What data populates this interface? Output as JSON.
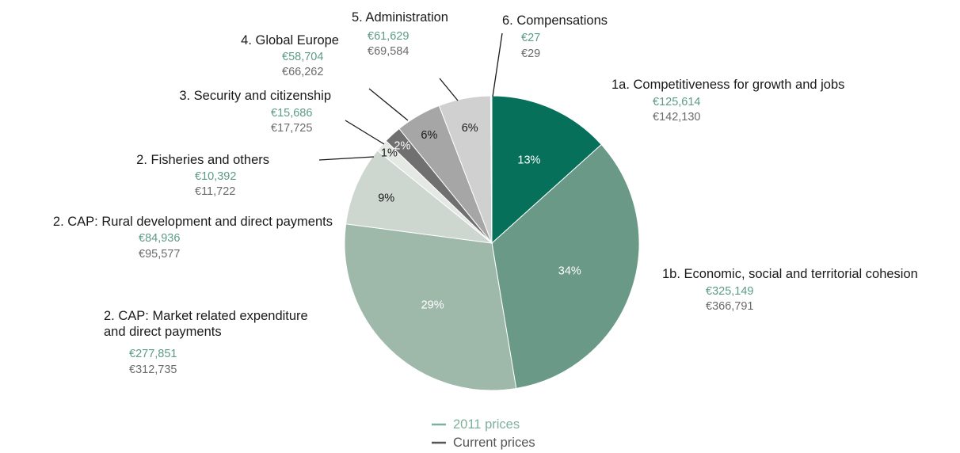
{
  "chart_data": {
    "type": "pie",
    "slices": [
      {
        "label": "1a. Competitiveness for growth and jobs",
        "percent": 13,
        "pct_label": "13%",
        "value_2011": "€125,614",
        "value_current": "€142,130",
        "color": "#06705a",
        "pct_color": "#ffffff"
      },
      {
        "label": "1b. Economic, social and territorial cohesion",
        "percent": 34,
        "pct_label": "34%",
        "value_2011": "€325,149",
        "value_current": "€366,791",
        "color": "#6a9a87",
        "pct_color": "#ffffff"
      },
      {
        "label": "2. CAP: Market related expenditure and direct payments",
        "label_lines": [
          "2. CAP: Market related expenditure",
          "and direct payments"
        ],
        "percent": 29,
        "pct_label": "29%",
        "value_2011": "€277,851",
        "value_current": "€312,735",
        "color": "#9eb8aa",
        "pct_color": "#ffffff"
      },
      {
        "label": "2. CAP: Rural development and direct payments",
        "percent": 9,
        "pct_label": "9%",
        "value_2011": "€84,936",
        "value_current": "€95,577",
        "color": "#cdd6cf",
        "pct_color": "#1a1a1a"
      },
      {
        "label": "2. Fisheries and others",
        "percent": 1,
        "pct_label": "1%",
        "value_2011": "€10,392",
        "value_current": "€11,722",
        "color": "#e4e9e4",
        "pct_color": "#1a1a1a"
      },
      {
        "label": "3. Security and citizenship",
        "percent": 2,
        "pct_label": "2%",
        "value_2011": "€15,686",
        "value_current": "€17,725",
        "color": "#707070",
        "pct_color": "#ffffff"
      },
      {
        "label": "4. Global Europe",
        "percent": 6,
        "pct_label": "6%",
        "value_2011": "€58,704",
        "value_current": "€66,262",
        "color": "#a6a6a6",
        "pct_color": "#1a1a1a"
      },
      {
        "label": "5. Administration",
        "percent": 6,
        "pct_label": "6%",
        "value_2011": "€61,629",
        "value_current": "€69,584",
        "color": "#d0d0d0",
        "pct_color": "#1a1a1a"
      },
      {
        "label": "6. Compensations",
        "percent": 0,
        "pct_label": "",
        "value_2011": "€27",
        "value_current": "€29",
        "color": "#ffffff",
        "pct_color": "#1a1a1a"
      }
    ],
    "legend": {
      "position": "bottom",
      "items": [
        {
          "label": "2011 prices",
          "color": "#7fb09c"
        },
        {
          "label": "Current prices",
          "color": "#555555"
        }
      ]
    }
  }
}
